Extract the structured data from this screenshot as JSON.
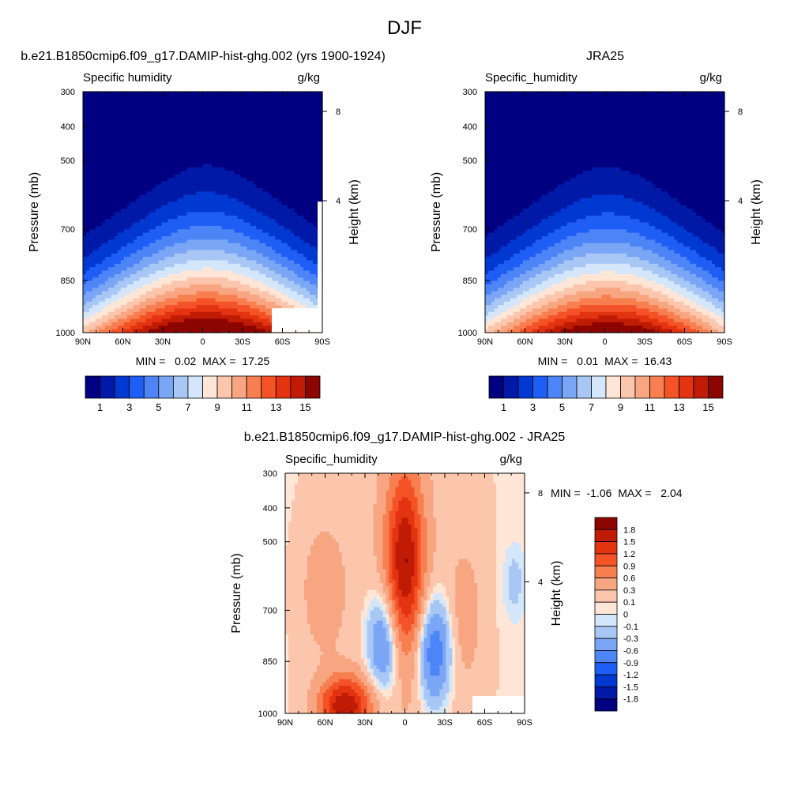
{
  "figure": {
    "title": "DJF"
  },
  "chart_data": [
    {
      "type": "heatmap",
      "title": "b.e21.B1850cmip6.f09_g17.DAMIP-hist-ghg.002 (yrs 1900-1924)",
      "variable": "Specific humidity",
      "units": "g/kg",
      "ylabel": "Pressure (mb)",
      "ylabel_right": "Height (km)",
      "x_ticks": [
        "90N",
        "60N",
        "30N",
        "0",
        "30S",
        "60S",
        "90S"
      ],
      "y_ticks": [
        "300",
        "400",
        "500",
        "700",
        "850",
        "1000"
      ],
      "y_ticks_right": [
        "8",
        "4"
      ],
      "stats": "MIN =   0.02  MAX =  17.25",
      "min": 0.02,
      "max": 17.25,
      "colorbar_labels": [
        "1",
        "3",
        "5",
        "7",
        "9",
        "11",
        "13",
        "15"
      ],
      "peak_lat": -3,
      "masked_corner": true
    },
    {
      "type": "heatmap",
      "title": "JRA25",
      "variable": "Specific_humidity",
      "units": "g/kg",
      "ylabel": "Pressure (mb)",
      "ylabel_right": "Height (km)",
      "x_ticks": [
        "90N",
        "60N",
        "30N",
        "0",
        "30S",
        "60S",
        "90S"
      ],
      "y_ticks": [
        "300",
        "400",
        "500",
        "700",
        "850",
        "1000"
      ],
      "y_ticks_right": [
        "8",
        "4"
      ],
      "stats": "MIN =   0.01  MAX =  16.43",
      "min": 0.01,
      "max": 16.43,
      "colorbar_labels": [
        "1",
        "3",
        "5",
        "7",
        "9",
        "11",
        "13",
        "15"
      ],
      "peak_lat": -2,
      "masked_corner": false
    },
    {
      "type": "heatmap",
      "title": "b.e21.B1850cmip6.f09_g17.DAMIP-hist-ghg.002 - JRA25",
      "variable": "Specific_humidity",
      "units": "g/kg",
      "ylabel": "Pressure (mb)",
      "ylabel_right": "Height (km)",
      "x_ticks": [
        "90N",
        "60N",
        "30N",
        "0",
        "30S",
        "60S",
        "90S"
      ],
      "y_ticks": [
        "300",
        "400",
        "500",
        "700",
        "850",
        "1000"
      ],
      "y_ticks_right": [
        "8",
        "4"
      ],
      "stats": "MIN =  -1.06  MAX =   2.04",
      "min": -1.06,
      "max": 2.04,
      "colorbar_labels": [
        "1.8",
        "1.5",
        "1.2",
        "0.9",
        "0.6",
        "0.3",
        "0.1",
        "0",
        "-0.1",
        "-0.3",
        "-0.6",
        "-0.9",
        "-1.2",
        "-1.5",
        "-1.8"
      ],
      "features": [
        {
          "kind": "max",
          "lat": 0,
          "p": 560,
          "value": 1.6
        },
        {
          "kind": "max",
          "lat": 45,
          "p": 980,
          "value": 1.6
        },
        {
          "kind": "min",
          "lat": -22,
          "p": 820,
          "value": -1.06
        },
        {
          "kind": "min",
          "lat": 16,
          "p": 800,
          "value": -0.9
        }
      ]
    }
  ],
  "colors": {
    "abs_levels": [
      "#000080",
      "#0019a6",
      "#0039d1",
      "#1f5ef5",
      "#4d85f7",
      "#7aa6f5",
      "#a8c7f5",
      "#d4e6fa",
      "#ffe6d6",
      "#fcc6ad",
      "#f8a582",
      "#f77f50",
      "#f45227",
      "#e33310",
      "#bf1b05",
      "#8c0500"
    ],
    "diff_levels": [
      "#000080",
      "#0019a6",
      "#0039d1",
      "#1f5ef5",
      "#4d85f7",
      "#7aa6f5",
      "#a8c7f5",
      "#d4e6fa",
      "#ffe6d6",
      "#fcc6ad",
      "#f8a582",
      "#f77f50",
      "#f45227",
      "#e33310",
      "#bf1b05",
      "#8c0500"
    ]
  }
}
